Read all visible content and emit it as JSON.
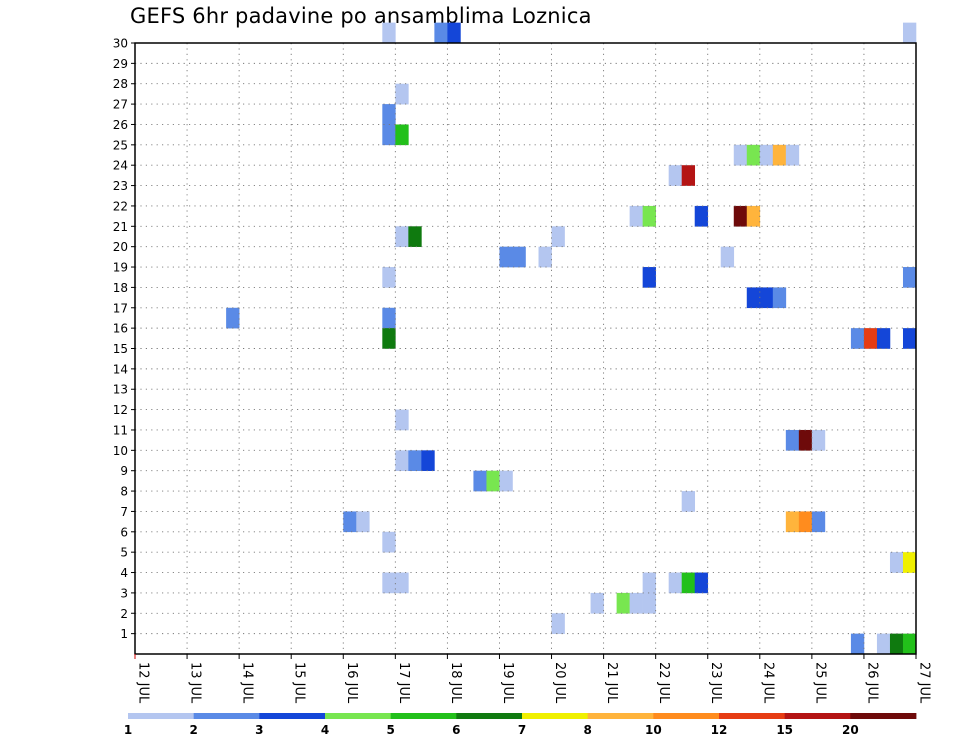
{
  "chart_data": {
    "type": "heatmap",
    "title": "GEFS 6hr padavine po ansamblima Loznica",
    "xlabel": "",
    "ylabel": "",
    "x_tick_labels": [
      "12 JUL",
      "13 JUL",
      "14 JUL",
      "15 JUL",
      "16 JUL",
      "17 JUL",
      "18 JUL",
      "19 JUL",
      "20 JUL",
      "21 JUL",
      "22 JUL",
      "23 JUL",
      "24 JUL",
      "25 JUL",
      "26 JUL",
      "27 JUL"
    ],
    "y_tick_labels": [
      "1",
      "2",
      "3",
      "4",
      "5",
      "6",
      "7",
      "8",
      "9",
      "10",
      "11",
      "12",
      "13",
      "14",
      "15",
      "16",
      "17",
      "18",
      "19",
      "20",
      "21",
      "22",
      "23",
      "24",
      "25",
      "26",
      "27",
      "28",
      "29",
      "30"
    ],
    "xlim": [
      0,
      60
    ],
    "ylim": [
      0,
      30
    ],
    "grid": true,
    "legend": {
      "placement": "bottom",
      "labels": [
        "1",
        "2",
        "3",
        "4",
        "5",
        "6",
        "7",
        "8",
        "10",
        "12",
        "15",
        "20"
      ],
      "colors": [
        "#b4c6f0",
        "#5a8ae6",
        "#1446d8",
        "#78e650",
        "#22c01a",
        "#0f7a0f",
        "#f0f000",
        "#ffb43c",
        "#ff8c1e",
        "#e63c14",
        "#b41414",
        "#6e0a0a"
      ]
    },
    "cells": [
      {
        "x": 19,
        "y": 30,
        "v": 1
      },
      {
        "x": 23,
        "y": 30,
        "v": 2
      },
      {
        "x": 24,
        "y": 30,
        "v": 3
      },
      {
        "x": 59,
        "y": 30,
        "v": 1
      },
      {
        "x": 20,
        "y": 27,
        "v": 1
      },
      {
        "x": 19,
        "y": 26,
        "v": 2
      },
      {
        "x": 19,
        "y": 25,
        "v": 2
      },
      {
        "x": 20,
        "y": 25,
        "v": 5
      },
      {
        "x": 46,
        "y": 24,
        "v": 1
      },
      {
        "x": 47,
        "y": 24,
        "v": 4
      },
      {
        "x": 48,
        "y": 24,
        "v": 1
      },
      {
        "x": 49,
        "y": 24,
        "v": 8
      },
      {
        "x": 50,
        "y": 24,
        "v": 1
      },
      {
        "x": 41,
        "y": 23,
        "v": 1
      },
      {
        "x": 42,
        "y": 23,
        "v": 15
      },
      {
        "x": 38,
        "y": 21,
        "v": 1
      },
      {
        "x": 39,
        "y": 21,
        "v": 4
      },
      {
        "x": 43,
        "y": 21,
        "v": 3
      },
      {
        "x": 46,
        "y": 21,
        "v": 20
      },
      {
        "x": 47,
        "y": 21,
        "v": 8
      },
      {
        "x": 20,
        "y": 20,
        "v": 1
      },
      {
        "x": 21,
        "y": 20,
        "v": 6
      },
      {
        "x": 32,
        "y": 20,
        "v": 1
      },
      {
        "x": 28,
        "y": 19,
        "v": 2
      },
      {
        "x": 29,
        "y": 19,
        "v": 2
      },
      {
        "x": 31,
        "y": 19,
        "v": 1
      },
      {
        "x": 45,
        "y": 19,
        "v": 1
      },
      {
        "x": 19,
        "y": 18,
        "v": 1
      },
      {
        "x": 39,
        "y": 18,
        "v": 3
      },
      {
        "x": 59,
        "y": 18,
        "v": 2
      },
      {
        "x": 47,
        "y": 17,
        "v": 3
      },
      {
        "x": 48,
        "y": 17,
        "v": 3
      },
      {
        "x": 49,
        "y": 17,
        "v": 2
      },
      {
        "x": 7,
        "y": 16,
        "v": 2
      },
      {
        "x": 19,
        "y": 16,
        "v": 2
      },
      {
        "x": 19,
        "y": 15,
        "v": 6
      },
      {
        "x": 55,
        "y": 15,
        "v": 2
      },
      {
        "x": 56,
        "y": 15,
        "v": 12
      },
      {
        "x": 57,
        "y": 15,
        "v": 3
      },
      {
        "x": 59,
        "y": 15,
        "v": 3
      },
      {
        "x": 20,
        "y": 11,
        "v": 1
      },
      {
        "x": 50,
        "y": 10,
        "v": 2
      },
      {
        "x": 51,
        "y": 10,
        "v": 20
      },
      {
        "x": 52,
        "y": 10,
        "v": 1
      },
      {
        "x": 20,
        "y": 9,
        "v": 1
      },
      {
        "x": 21,
        "y": 9,
        "v": 2
      },
      {
        "x": 22,
        "y": 9,
        "v": 3
      },
      {
        "x": 26,
        "y": 8,
        "v": 2
      },
      {
        "x": 27,
        "y": 8,
        "v": 4
      },
      {
        "x": 28,
        "y": 8,
        "v": 1
      },
      {
        "x": 42,
        "y": 7,
        "v": 1
      },
      {
        "x": 16,
        "y": 6,
        "v": 2
      },
      {
        "x": 17,
        "y": 6,
        "v": 1
      },
      {
        "x": 50,
        "y": 6,
        "v": 8
      },
      {
        "x": 51,
        "y": 6,
        "v": 10
      },
      {
        "x": 52,
        "y": 6,
        "v": 2
      },
      {
        "x": 19,
        "y": 5,
        "v": 1
      },
      {
        "x": 58,
        "y": 4,
        "v": 1
      },
      {
        "x": 59,
        "y": 4,
        "v": 7
      },
      {
        "x": 19,
        "y": 3,
        "v": 1
      },
      {
        "x": 20,
        "y": 3,
        "v": 1
      },
      {
        "x": 39,
        "y": 3,
        "v": 1
      },
      {
        "x": 41,
        "y": 3,
        "v": 1
      },
      {
        "x": 42,
        "y": 3,
        "v": 5
      },
      {
        "x": 43,
        "y": 3,
        "v": 3
      },
      {
        "x": 35,
        "y": 2,
        "v": 1
      },
      {
        "x": 37,
        "y": 2,
        "v": 4
      },
      {
        "x": 38,
        "y": 2,
        "v": 1
      },
      {
        "x": 39,
        "y": 2,
        "v": 1
      },
      {
        "x": 32,
        "y": 1,
        "v": 1
      },
      {
        "x": 55,
        "y": 0,
        "v": 2
      },
      {
        "x": 57,
        "y": 0,
        "v": 1
      },
      {
        "x": 58,
        "y": 0,
        "v": 6
      },
      {
        "x": 59,
        "y": 0,
        "v": 5
      }
    ]
  }
}
